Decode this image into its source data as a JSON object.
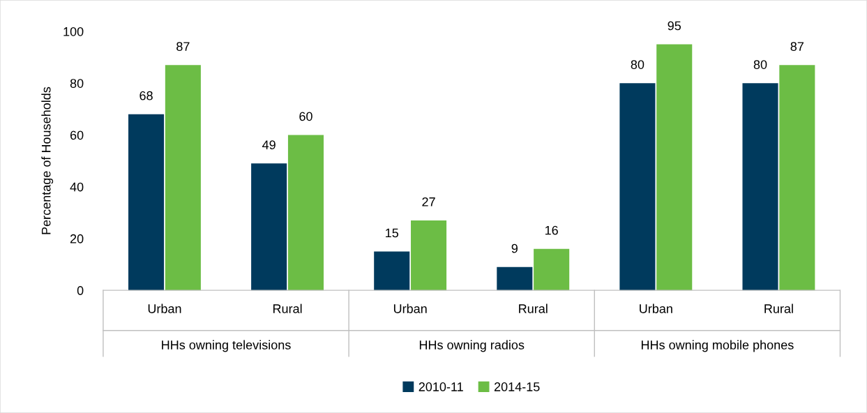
{
  "chart_data": {
    "type": "bar",
    "ylabel": "Percentage of Households",
    "categories": [
      "Urban",
      "Rural",
      "Urban",
      "Rural",
      "Urban",
      "Rural"
    ],
    "annotations": [
      "HHs owning televisions",
      "HHs owning radios",
      "HHs owning mobile phones"
    ],
    "series": [
      {
        "name": "2010-11",
        "color": "#003a5d",
        "values": [
          68,
          49,
          15,
          9,
          80,
          80
        ]
      },
      {
        "name": "2014-15",
        "color": "#6cbd45",
        "values": [
          87,
          60,
          27,
          16,
          95,
          87
        ]
      }
    ],
    "ylim": [
      0,
      100
    ],
    "yticks": [
      0,
      20,
      40,
      60,
      80,
      100
    ],
    "data_labels": true,
    "legend": "bottom",
    "grid": false
  }
}
